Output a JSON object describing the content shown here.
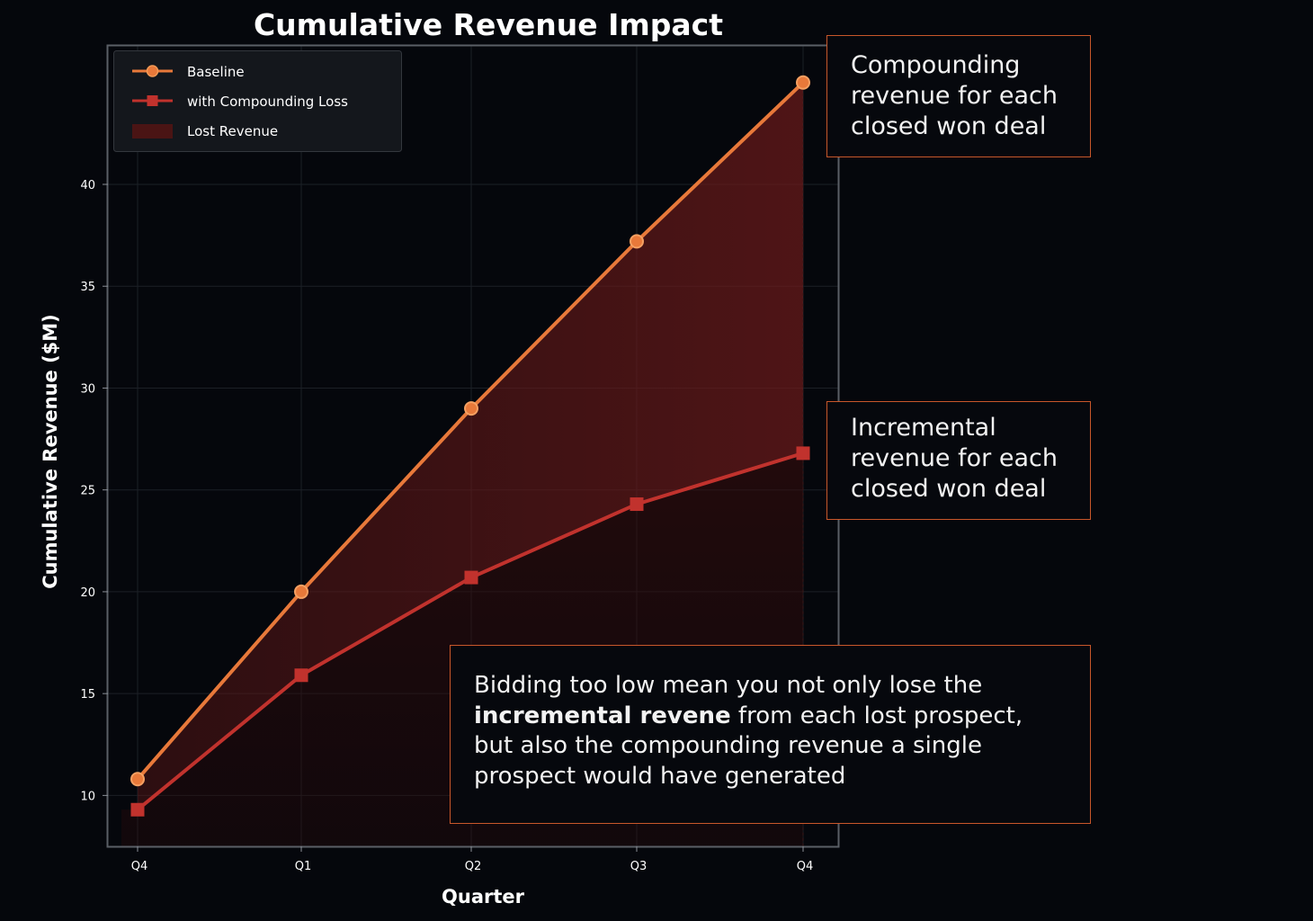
{
  "chart_data": {
    "type": "line",
    "title": "Cumulative Revenue Impact",
    "xlabel": "Quarter",
    "ylabel": "Cumulative Revenue ($M)",
    "categories": [
      "Q4",
      "Q1",
      "Q2",
      "Q3",
      "Q4"
    ],
    "series": [
      {
        "name": "Baseline",
        "values": [
          10.8,
          20.0,
          29.0,
          37.2,
          45.0
        ],
        "color": "#e8793a",
        "marker": "circle"
      },
      {
        "name": "with Compounding Loss",
        "values": [
          9.3,
          15.9,
          20.7,
          24.3,
          26.8
        ],
        "color": "#c1322d",
        "marker": "square"
      }
    ],
    "fill": {
      "name": "Lost Revenue",
      "between": [
        "Baseline",
        "with Compounding Loss"
      ],
      "color": "#6b1a1a"
    },
    "ylim": [
      7.5,
      46.8
    ],
    "yticks": [
      10,
      15,
      20,
      25,
      30,
      35,
      40
    ],
    "grid": true,
    "legend": "top-left"
  },
  "annotations": {
    "compounding": "Compounding revenue for each closed won deal",
    "incremental": "Incremental revenue for each closed won deal",
    "bidding_pre": "Bidding too low mean you not only lose the ",
    "bidding_bold": "incremental revene",
    "bidding_post": " from each lost prospect, but also the compounding revenue a single prospect would have generated"
  }
}
